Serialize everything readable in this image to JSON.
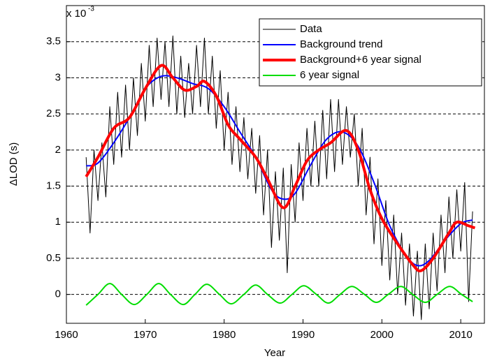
{
  "chart_data": {
    "type": "line",
    "x_label": "Year",
    "y_label": "ΔLOD (s)",
    "y_multiplier": "x 10",
    "y_multiplier_exponent": "-3",
    "xlim": [
      1960,
      2013
    ],
    "xticks": [
      1960,
      1970,
      1980,
      1990,
      2000,
      2010
    ],
    "ylim": [
      -0.4,
      4.0
    ],
    "yticks": [
      0,
      0.5,
      1,
      1.5,
      2,
      2.5,
      3,
      3.5
    ],
    "grid": true,
    "legend": "upper right",
    "series": [
      {
        "name": "Data",
        "color": "#000000",
        "width": 1,
        "smooth": false,
        "x": [
          1962.5,
          1963,
          1963.5,
          1964,
          1964.5,
          1965,
          1965.5,
          1966,
          1966.5,
          1967,
          1967.5,
          1968,
          1968.5,
          1969,
          1969.5,
          1970,
          1970.5,
          1971,
          1971.5,
          1972,
          1972.5,
          1973,
          1973.5,
          1974,
          1974.5,
          1975,
          1975.5,
          1976,
          1976.5,
          1977,
          1977.5,
          1978,
          1978.5,
          1979,
          1979.5,
          1980,
          1980.5,
          1981,
          1981.5,
          1982,
          1982.5,
          1983,
          1983.5,
          1984,
          1984.5,
          1985,
          1985.5,
          1986,
          1986.5,
          1987,
          1987.5,
          1988,
          1988.5,
          1989,
          1989.5,
          1990,
          1990.5,
          1991,
          1991.5,
          1992,
          1992.5,
          1993,
          1993.5,
          1994,
          1994.5,
          1995,
          1995.5,
          1996,
          1996.5,
          1997,
          1997.5,
          1998,
          1998.5,
          1999,
          1999.5,
          2000,
          2000.5,
          2001,
          2001.5,
          2002,
          2002.5,
          2003,
          2003.5,
          2004,
          2004.5,
          2005,
          2005.5,
          2006,
          2006.5,
          2007,
          2007.5,
          2008,
          2008.5,
          2009,
          2009.5,
          2010,
          2010.5,
          2011,
          2011.5
        ],
        "values": [
          1.9,
          0.85,
          2.0,
          1.3,
          2.1,
          1.35,
          2.6,
          1.8,
          2.8,
          1.9,
          2.9,
          2.0,
          3.0,
          2.2,
          3.2,
          2.4,
          3.45,
          2.6,
          3.55,
          2.7,
          3.5,
          2.6,
          3.58,
          2.5,
          3.3,
          2.45,
          3.2,
          2.5,
          3.45,
          2.6,
          3.55,
          2.5,
          3.3,
          2.3,
          3.1,
          2.0,
          2.8,
          1.8,
          2.6,
          1.7,
          2.45,
          1.6,
          2.3,
          1.4,
          2.2,
          1.1,
          2.0,
          0.65,
          1.7,
          0.75,
          1.75,
          0.3,
          1.8,
          1.0,
          2.1,
          1.3,
          2.3,
          1.5,
          2.4,
          1.5,
          2.55,
          1.6,
          2.7,
          1.7,
          2.7,
          1.8,
          2.6,
          1.9,
          2.5,
          1.5,
          2.3,
          1.1,
          1.9,
          0.7,
          1.6,
          0.4,
          1.3,
          0.2,
          1.1,
          0.0,
          0.85,
          -0.15,
          0.7,
          -0.3,
          0.6,
          -0.35,
          0.7,
          -0.2,
          0.85,
          0.05,
          1.1,
          0.3,
          1.35,
          0.5,
          1.45,
          0.6,
          1.55,
          -0.1,
          1.15
        ]
      },
      {
        "name": "Background trend",
        "color": "#0000ff",
        "width": 2,
        "smooth": true,
        "x": [
          1962.5,
          1964,
          1966,
          1968,
          1970,
          1972,
          1974,
          1976,
          1978,
          1980,
          1982,
          1984,
          1986,
          1987.5,
          1989,
          1991,
          1993,
          1995,
          1997,
          1999,
          2001,
          2003,
          2004.5,
          2006,
          2008,
          2010,
          2011.5
        ],
        "values": [
          1.78,
          1.82,
          2.1,
          2.45,
          2.85,
          3.02,
          3.0,
          2.92,
          2.85,
          2.6,
          2.25,
          1.9,
          1.45,
          1.32,
          1.4,
          1.8,
          2.15,
          2.25,
          2.05,
          1.55,
          0.95,
          0.55,
          0.4,
          0.47,
          0.75,
          0.98,
          1.03
        ]
      },
      {
        "name": "Background+6 year signal",
        "color": "#ff0000",
        "width": 4,
        "smooth": true,
        "x": [
          1962.5,
          1964,
          1966,
          1968,
          1970,
          1972,
          1973.5,
          1975,
          1976.5,
          1977.5,
          1979,
          1980.5,
          1982,
          1984,
          1985.5,
          1987.5,
          1989,
          1990.5,
          1992,
          1993.5,
          1995.5,
          1997,
          1998.5,
          2000,
          2002,
          2004,
          2005,
          2006.5,
          2008.5,
          2009.5,
          2011,
          2011.8
        ],
        "values": [
          1.63,
          1.9,
          2.3,
          2.45,
          2.85,
          3.17,
          3.0,
          2.83,
          2.88,
          2.95,
          2.75,
          2.35,
          2.15,
          1.9,
          1.6,
          1.2,
          1.5,
          1.85,
          2.0,
          2.1,
          2.27,
          2.0,
          1.45,
          1.05,
          0.7,
          0.4,
          0.33,
          0.5,
          0.85,
          1.0,
          0.95,
          0.92
        ]
      },
      {
        "name": "6 year signal",
        "color": "#00dd00",
        "width": 2,
        "smooth": true,
        "x": [
          1962.5,
          1964,
          1965.5,
          1967,
          1968.6,
          1970.2,
          1971.7,
          1973.2,
          1974.8,
          1976.3,
          1977.8,
          1979.4,
          1980.9,
          1982.5,
          1984,
          1985.5,
          1987.1,
          1988.6,
          1990.1,
          1991.7,
          1993.2,
          1994.7,
          1996.2,
          1997.8,
          1999.3,
          2000.8,
          2002.4,
          2003.9,
          2005.5,
          2007,
          2008.6,
          2010.1,
          2011.5
        ],
        "values": [
          -0.15,
          0,
          0.15,
          0,
          -0.14,
          0,
          0.15,
          0,
          -0.14,
          0,
          0.14,
          0,
          -0.13,
          0,
          0.13,
          0,
          -0.12,
          0,
          0.12,
          0,
          -0.12,
          0,
          0.11,
          0,
          -0.11,
          0,
          0.11,
          0,
          -0.11,
          0,
          0.11,
          0,
          -0.1
        ]
      }
    ]
  }
}
